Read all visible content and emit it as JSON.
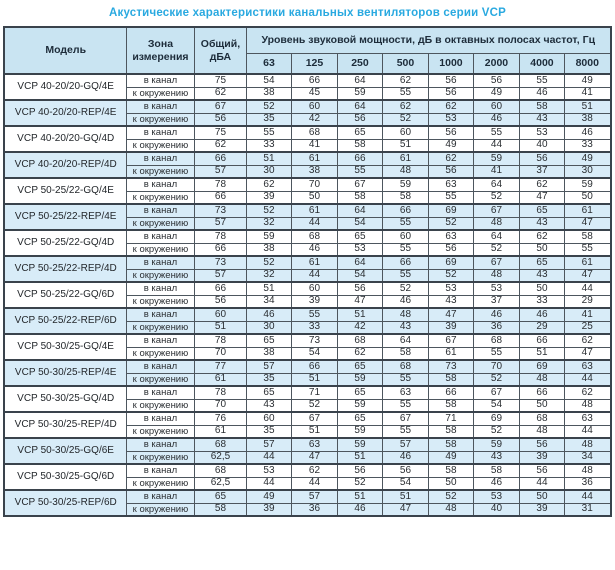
{
  "title": "Акустические характеристики канальных вентиляторов  серии VCP",
  "table": {
    "headers": {
      "model": "Модель",
      "zone": "Зона измерения",
      "total": "Общий, дБА",
      "span": "Уровень звуковой мощности, дБ в октавных полосах частот, Гц",
      "frequencies": [
        "63",
        "125",
        "250",
        "500",
        "1000",
        "2000",
        "4000",
        "8000"
      ]
    },
    "zone_in_label": "в канал",
    "zone_out_label": "к окружению",
    "accent_colors": {
      "title_blue": "#29a9e0",
      "header_bg": "#c9e4f2",
      "shaded_row_bg": "#d8ecf8"
    },
    "models": [
      {
        "name": "VCP 40-20/20-GQ/4E",
        "shaded": false,
        "in": {
          "total": "75",
          "bands": [
            54,
            66,
            64,
            62,
            56,
            56,
            55,
            49
          ]
        },
        "out": {
          "total": "62",
          "bands": [
            38,
            45,
            59,
            55,
            56,
            49,
            46,
            41
          ]
        }
      },
      {
        "name": "VCP 40-20/20-REP/4E",
        "shaded": true,
        "in": {
          "total": "67",
          "bands": [
            52,
            60,
            64,
            62,
            62,
            60,
            58,
            51
          ]
        },
        "out": {
          "total": "56",
          "bands": [
            35,
            42,
            56,
            52,
            53,
            46,
            43,
            38
          ]
        }
      },
      {
        "name": "VCP 40-20/20-GQ/4D",
        "shaded": false,
        "in": {
          "total": "75",
          "bands": [
            55,
            68,
            65,
            60,
            56,
            55,
            53,
            46
          ]
        },
        "out": {
          "total": "62",
          "bands": [
            33,
            41,
            58,
            51,
            49,
            44,
            40,
            33
          ]
        }
      },
      {
        "name": "VCP 40-20/20-REP/4D",
        "shaded": true,
        "in": {
          "total": "66",
          "bands": [
            51,
            61,
            66,
            61,
            62,
            59,
            56,
            49
          ]
        },
        "out": {
          "total": "57",
          "bands": [
            30,
            38,
            55,
            48,
            56,
            41,
            37,
            30
          ]
        }
      },
      {
        "name": "VCP 50-25/22-GQ/4E",
        "shaded": false,
        "in": {
          "total": "78",
          "bands": [
            62,
            70,
            67,
            59,
            63,
            64,
            62,
            59
          ]
        },
        "out": {
          "total": "66",
          "bands": [
            39,
            50,
            58,
            58,
            55,
            52,
            47,
            50
          ]
        }
      },
      {
        "name": "VCP 50-25/22-REP/4E",
        "shaded": true,
        "in": {
          "total": "73",
          "bands": [
            52,
            61,
            64,
            66,
            69,
            67,
            65,
            61
          ]
        },
        "out": {
          "total": "57",
          "bands": [
            32,
            44,
            54,
            55,
            52,
            48,
            43,
            47
          ]
        }
      },
      {
        "name": "VCP 50-25/22-GQ/4D",
        "shaded": false,
        "in": {
          "total": "78",
          "bands": [
            59,
            68,
            65,
            60,
            63,
            64,
            62,
            58
          ]
        },
        "out": {
          "total": "66",
          "bands": [
            38,
            46,
            53,
            55,
            56,
            52,
            50,
            55
          ]
        }
      },
      {
        "name": "VCP 50-25/22-REP/4D",
        "shaded": true,
        "in": {
          "total": "73",
          "bands": [
            52,
            61,
            64,
            66,
            69,
            67,
            65,
            61
          ]
        },
        "out": {
          "total": "57",
          "bands": [
            32,
            44,
            54,
            55,
            52,
            48,
            43,
            47
          ]
        }
      },
      {
        "name": "VCP 50-25/22-GQ/6D",
        "shaded": false,
        "in": {
          "total": "66",
          "bands": [
            51,
            60,
            56,
            52,
            53,
            53,
            50,
            44
          ]
        },
        "out": {
          "total": "56",
          "bands": [
            34,
            39,
            47,
            46,
            43,
            37,
            33,
            29
          ]
        }
      },
      {
        "name": "VCP 50-25/22-REP/6D",
        "shaded": true,
        "in": {
          "total": "60",
          "bands": [
            46,
            55,
            51,
            48,
            47,
            46,
            46,
            41
          ]
        },
        "out": {
          "total": "51",
          "bands": [
            30,
            33,
            42,
            43,
            39,
            36,
            29,
            25
          ]
        }
      },
      {
        "name": "VCP 50-30/25-GQ/4E",
        "shaded": false,
        "in": {
          "total": "78",
          "bands": [
            65,
            73,
            68,
            64,
            67,
            68,
            66,
            62
          ]
        },
        "out": {
          "total": "70",
          "bands": [
            38,
            54,
            62,
            58,
            61,
            55,
            51,
            47
          ]
        }
      },
      {
        "name": "VCP 50-30/25-REP/4E",
        "shaded": true,
        "in": {
          "total": "77",
          "bands": [
            57,
            66,
            65,
            68,
            73,
            70,
            69,
            63
          ]
        },
        "out": {
          "total": "61",
          "bands": [
            35,
            51,
            59,
            55,
            58,
            52,
            48,
            44
          ]
        }
      },
      {
        "name": "VCP 50-30/25-GQ/4D",
        "shaded": false,
        "in": {
          "total": "78",
          "bands": [
            65,
            71,
            65,
            63,
            66,
            67,
            66,
            62
          ]
        },
        "out": {
          "total": "70",
          "bands": [
            43,
            52,
            59,
            55,
            58,
            54,
            50,
            48
          ]
        }
      },
      {
        "name": "VCP 50-30/25-REP/4D",
        "shaded": false,
        "in": {
          "total": "76",
          "bands": [
            60,
            67,
            65,
            67,
            71,
            69,
            68,
            63
          ]
        },
        "out": {
          "total": "61",
          "bands": [
            35,
            51,
            59,
            55,
            58,
            52,
            48,
            44
          ]
        }
      },
      {
        "name": "VCP 50-30/25-GQ/6E",
        "shaded": true,
        "in": {
          "total": "68",
          "bands": [
            57,
            63,
            59,
            57,
            58,
            59,
            56,
            48
          ]
        },
        "out": {
          "total": "62,5",
          "bands": [
            44,
            47,
            51,
            46,
            49,
            43,
            39,
            34
          ]
        }
      },
      {
        "name": "VCP 50-30/25-GQ/6D",
        "shaded": false,
        "in": {
          "total": "68",
          "bands": [
            53,
            62,
            56,
            56,
            58,
            58,
            56,
            48
          ]
        },
        "out": {
          "total": "62,5",
          "bands": [
            44,
            44,
            52,
            54,
            50,
            46,
            44,
            36
          ]
        }
      },
      {
        "name": "VCP 50-30/25-REP/6D",
        "shaded": true,
        "in": {
          "total": "65",
          "bands": [
            49,
            57,
            51,
            51,
            52,
            53,
            50,
            44
          ]
        },
        "out": {
          "total": "58",
          "bands": [
            39,
            36,
            46,
            47,
            48,
            40,
            39,
            31
          ]
        }
      }
    ]
  }
}
